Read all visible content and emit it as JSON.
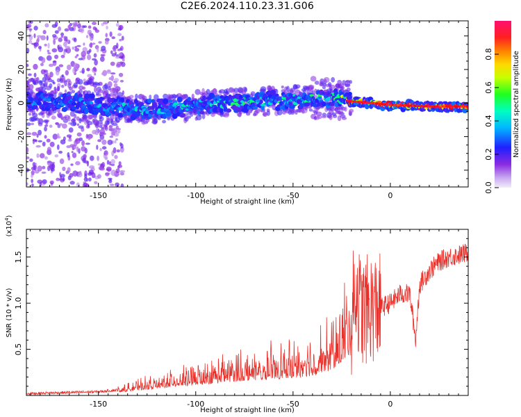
{
  "title": "C2E6.2024.110.23.31.G06",
  "chart_data": [
    {
      "type": "heatmap",
      "xlabel": "Height of straight line (km)",
      "ylabel": "Frequency (Hz)",
      "xlim": [
        -187,
        40
      ],
      "ylim": [
        -50,
        49
      ],
      "xticks": [
        -150,
        -100,
        -50,
        0
      ],
      "yticks": [
        -40,
        -20,
        0,
        20,
        40
      ],
      "colorbar": {
        "label": "Normalized spectral amplitude",
        "range": [
          0.0,
          1.0
        ],
        "ticks": [
          "0.0",
          "0.2",
          "0.4",
          "0.6",
          "0.8"
        ],
        "colors": [
          "#e8e0f8",
          "#8a2be2",
          "#2020ff",
          "#00c8ff",
          "#00ff80",
          "#40ff00",
          "#ffff00",
          "#ff8000",
          "#ff0000",
          "#ff1060"
        ]
      },
      "ridge": [
        {
          "x": -185,
          "freq": 1,
          "amp": 0.3
        },
        {
          "x": -150,
          "freq": -1,
          "amp": 0.35
        },
        {
          "x": -130,
          "freq": -4,
          "amp": 0.4
        },
        {
          "x": -110,
          "freq": -3,
          "amp": 0.42
        },
        {
          "x": -90,
          "freq": 0,
          "amp": 0.45
        },
        {
          "x": -70,
          "freq": 1,
          "amp": 0.5
        },
        {
          "x": -50,
          "freq": 2,
          "amp": 0.45
        },
        {
          "x": -30,
          "freq": 3,
          "amp": 0.5
        },
        {
          "x": -20,
          "freq": 1,
          "amp": 0.8
        },
        {
          "x": -10,
          "freq": 0,
          "amp": 0.85
        },
        {
          "x": 0,
          "freq": -1,
          "amp": 0.95
        },
        {
          "x": 20,
          "freq": -2,
          "amp": 0.95
        },
        {
          "x": 40,
          "freq": -2,
          "amp": 0.95
        }
      ]
    },
    {
      "type": "line",
      "xlabel": "Height of straight line (km)",
      "ylabel": "SNR (10 * v/v)",
      "y_scale_label": "(x10",
      "y_scale_exp": "4",
      "xlim": [
        -187,
        40
      ],
      "ylim": [
        0,
        1.8
      ],
      "xticks": [
        -150,
        -100,
        -50,
        0
      ],
      "yticks": [
        "0.5",
        "1.0",
        "1.5"
      ],
      "ytick_values": [
        0.5,
        1.0,
        1.5
      ],
      "color": "#e8302a",
      "series": [
        {
          "x": [
            -187,
            -170,
            -150,
            -140,
            -130,
            -120,
            -110,
            -100,
            -90,
            -80,
            -70,
            -60,
            -50,
            -40,
            -30,
            -25,
            -20,
            -18,
            -15,
            -10,
            -5,
            0,
            5,
            10,
            13,
            15,
            20,
            25,
            30,
            35,
            40
          ],
          "y": [
            0.02,
            0.03,
            0.04,
            0.06,
            0.1,
            0.13,
            0.17,
            0.2,
            0.24,
            0.27,
            0.3,
            0.32,
            0.34,
            0.38,
            0.5,
            0.65,
            0.8,
            1.2,
            0.9,
            0.95,
            0.95,
            1.0,
            1.1,
            1.1,
            0.6,
            1.2,
            1.35,
            1.45,
            1.5,
            1.52,
            1.55
          ]
        }
      ]
    }
  ]
}
